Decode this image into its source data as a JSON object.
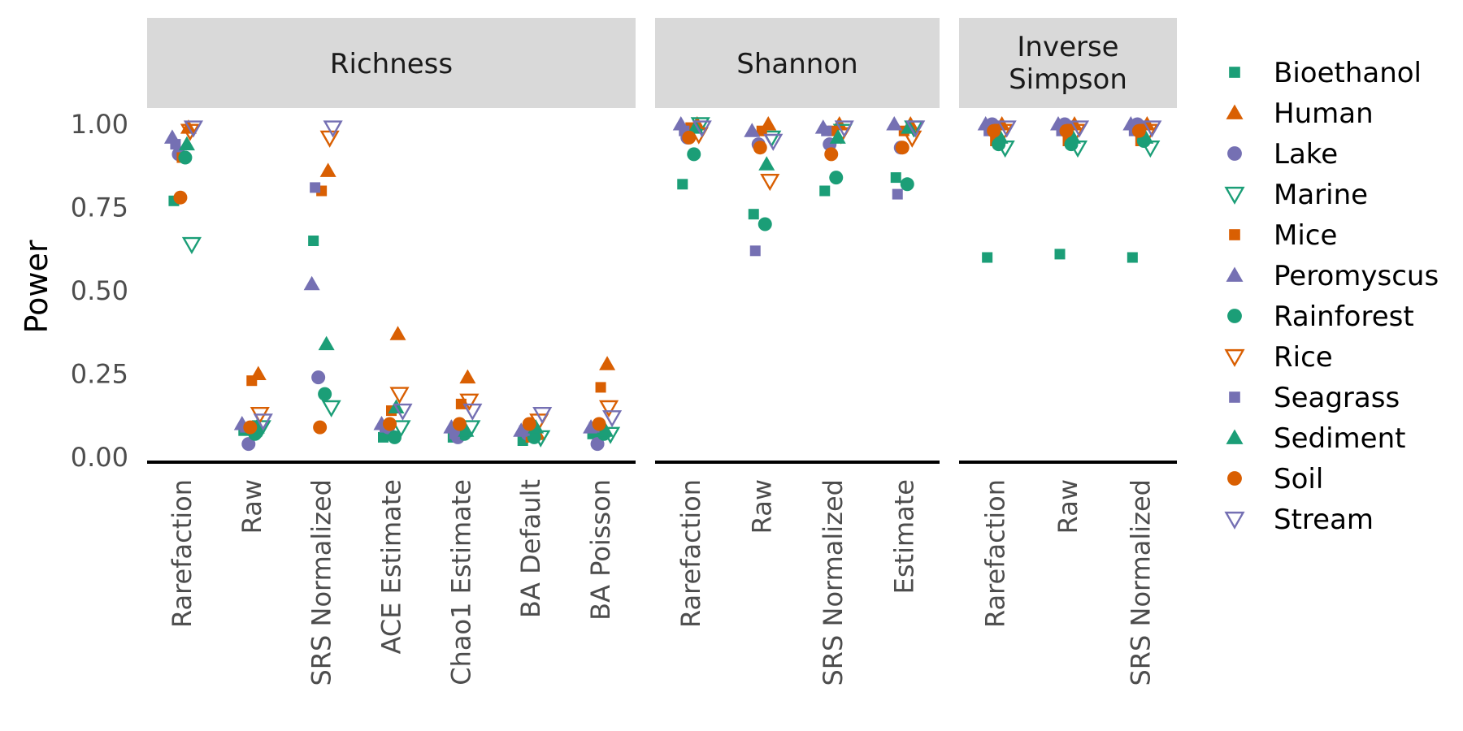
{
  "chart_data": {
    "type": "scatter",
    "ylabel": "Power",
    "ylim": [
      0,
      1.05
    ],
    "yticks": [
      "0.00",
      "0.25",
      "0.50",
      "0.75",
      "1.00"
    ],
    "legend_position": "right",
    "series": [
      {
        "name": "Bioethanol",
        "color": "#1b9e77",
        "shape": "square-filled"
      },
      {
        "name": "Human",
        "color": "#d95f02",
        "shape": "triangle-up-filled"
      },
      {
        "name": "Lake",
        "color": "#7570b3",
        "shape": "circle-filled"
      },
      {
        "name": "Marine",
        "color": "#1b9e77",
        "shape": "triangle-down-open"
      },
      {
        "name": "Mice",
        "color": "#d95f02",
        "shape": "square-filled"
      },
      {
        "name": "Peromyscus",
        "color": "#7570b3",
        "shape": "triangle-up-filled"
      },
      {
        "name": "Rainforest",
        "color": "#1b9e77",
        "shape": "circle-filled"
      },
      {
        "name": "Rice",
        "color": "#d95f02",
        "shape": "triangle-down-open"
      },
      {
        "name": "Seagrass",
        "color": "#7570b3",
        "shape": "square-filled"
      },
      {
        "name": "Sediment",
        "color": "#1b9e77",
        "shape": "triangle-up-filled"
      },
      {
        "name": "Soil",
        "color": "#d95f02",
        "shape": "circle-filled"
      },
      {
        "name": "Stream",
        "color": "#7570b3",
        "shape": "triangle-down-open"
      }
    ],
    "facets": [
      {
        "title": "Richness",
        "categories": [
          "Rarefaction",
          "Raw",
          "SRS Normalized",
          "ACE Estimate",
          "Chao1 Estimate",
          "BA Default",
          "BA Poisson"
        ],
        "values": {
          "Bioethanol": [
            0.77,
            0.08,
            0.65,
            0.06,
            0.06,
            0.05,
            0.07
          ],
          "Human": [
            0.99,
            0.25,
            0.86,
            0.37,
            0.24,
            0.07,
            0.28
          ],
          "Lake": [
            0.91,
            0.04,
            0.24,
            0.09,
            0.06,
            0.07,
            0.04
          ],
          "Marine": [
            0.64,
            0.09,
            0.15,
            0.09,
            0.09,
            0.06,
            0.07
          ],
          "Mice": [
            0.9,
            0.23,
            0.8,
            0.14,
            0.16,
            0.06,
            0.21
          ],
          "Peromyscus": [
            0.96,
            0.1,
            0.52,
            0.1,
            0.09,
            0.08,
            0.09
          ],
          "Rainforest": [
            0.9,
            0.07,
            0.19,
            0.06,
            0.07,
            0.06,
            0.07
          ],
          "Rice": [
            0.98,
            0.13,
            0.96,
            0.19,
            0.17,
            0.11,
            0.15
          ],
          "Seagrass": [
            0.94,
            0.09,
            0.81,
            0.09,
            0.07,
            0.08,
            0.09
          ],
          "Sediment": [
            0.94,
            0.09,
            0.34,
            0.15,
            0.08,
            0.09,
            0.08
          ],
          "Soil": [
            0.78,
            0.09,
            0.09,
            0.1,
            0.1,
            0.1,
            0.1
          ],
          "Stream": [
            0.99,
            0.11,
            0.99,
            0.14,
            0.14,
            0.13,
            0.12
          ]
        }
      },
      {
        "title": "Shannon",
        "categories": [
          "Rarefaction",
          "Raw",
          "SRS Normalized",
          "Estimate"
        ],
        "values": {
          "Bioethanol": [
            0.82,
            0.73,
            0.8,
            0.84
          ],
          "Human": [
            1.0,
            1.0,
            1.0,
            1.0
          ],
          "Lake": [
            0.96,
            0.94,
            0.94,
            0.93
          ],
          "Marine": [
            1.0,
            0.96,
            0.98,
            0.99
          ],
          "Mice": [
            0.99,
            0.98,
            0.98,
            0.98
          ],
          "Peromyscus": [
            1.0,
            0.98,
            0.99,
            1.0
          ],
          "Rainforest": [
            0.91,
            0.7,
            0.84,
            0.82
          ],
          "Rice": [
            0.97,
            0.83,
            0.97,
            0.96
          ],
          "Seagrass": [
            0.98,
            0.62,
            0.98,
            0.79
          ],
          "Sediment": [
            0.99,
            0.88,
            0.96,
            0.99
          ],
          "Soil": [
            0.96,
            0.93,
            0.91,
            0.93
          ],
          "Stream": [
            0.99,
            0.95,
            0.99,
            0.99
          ]
        }
      },
      {
        "title": "Inverse\nSimpson",
        "categories": [
          "Rarefaction",
          "Raw",
          "SRS Normalized"
        ],
        "values": {
          "Bioethanol": [
            0.6,
            0.61,
            0.6
          ],
          "Human": [
            1.0,
            1.0,
            1.0
          ],
          "Lake": [
            1.0,
            1.0,
            1.0
          ],
          "Marine": [
            0.93,
            0.93,
            0.93
          ],
          "Mice": [
            0.95,
            0.95,
            0.95
          ],
          "Peromyscus": [
            1.0,
            1.0,
            1.0
          ],
          "Rainforest": [
            0.94,
            0.94,
            0.95
          ],
          "Rice": [
            0.98,
            0.98,
            0.98
          ],
          "Seagrass": [
            0.98,
            0.98,
            0.98
          ],
          "Sediment": [
            0.96,
            0.96,
            0.96
          ],
          "Soil": [
            0.98,
            0.98,
            0.98
          ],
          "Stream": [
            0.99,
            0.99,
            0.99
          ]
        }
      }
    ]
  }
}
